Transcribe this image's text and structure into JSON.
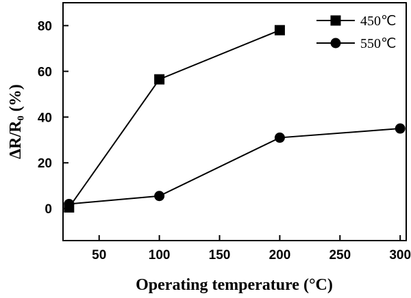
{
  "chart_data": {
    "type": "line",
    "title": "",
    "xlabel": "Operating temperature (°C)",
    "ylabel": "ΔR/R₀ (%)",
    "xlim": [
      20,
      305
    ],
    "ylim": [
      -14,
      90
    ],
    "x_ticks": [
      50,
      100,
      150,
      200,
      250,
      300
    ],
    "y_ticks": [
      0,
      20,
      40,
      60,
      80
    ],
    "grid": false,
    "legend_position": "top-right",
    "series": [
      {
        "name": "450℃",
        "marker": "square",
        "color": "#000000",
        "x": [
          25,
          100,
          200
        ],
        "y": [
          0.5,
          56.5,
          78
        ]
      },
      {
        "name": "550℃",
        "marker": "circle",
        "color": "#000000",
        "x": [
          25,
          100,
          200,
          300
        ],
        "y": [
          2,
          5.5,
          31,
          35
        ]
      }
    ]
  }
}
